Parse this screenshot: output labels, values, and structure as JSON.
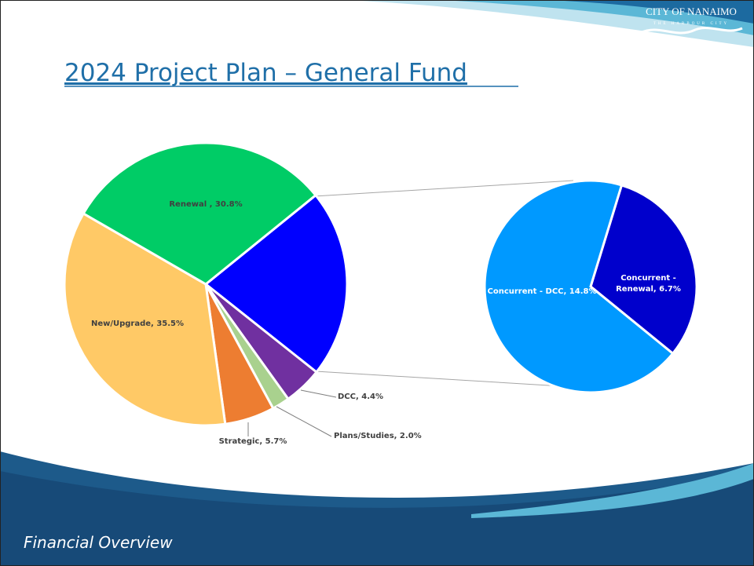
{
  "header": {
    "title": "2024 Project Plan – General Fund",
    "logo": "CITY OF NANAIMO",
    "logo_tagline": "THE HARBOUR CITY"
  },
  "footer": {
    "text": "Financial Overview"
  },
  "chart_data": {
    "type": "pie-of-pie",
    "values": [
      21.5,
      4.4,
      2.0,
      5.7,
      35.5,
      30.8
    ],
    "value_labels": [
      null,
      "DCC, 4.4%",
      "Plans/Studies, 2.0%",
      "Strategic, 5.7%",
      "New/Upgrade, 35.5%",
      "Renewal , 30.8%"
    ],
    "colors": [
      "#0000ff",
      "#7030a0",
      "#a9d18e",
      "#ed7d31",
      "#ffc966",
      "#00cc66"
    ],
    "secondary": {
      "values": [
        6.7,
        14.8
      ],
      "value_labels": [
        "Concurrent - Renewal, 6.7%",
        "Concurrent - DCC, 14.8%"
      ],
      "colors": [
        "#0000cc",
        "#0099ff"
      ]
    }
  }
}
